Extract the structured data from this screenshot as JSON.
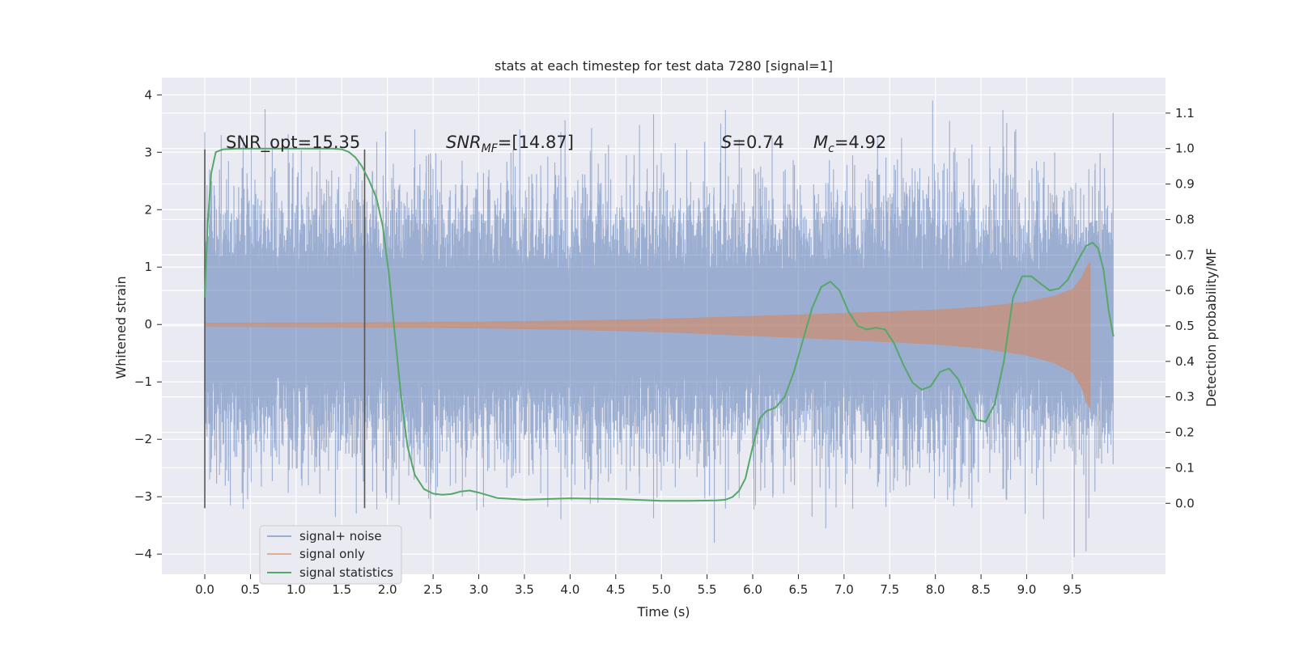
{
  "chart_data": {
    "type": "line",
    "title": "stats at each timestep for test data 7280 [signal=1]",
    "xlabel": "Time (s)",
    "ylabel_left": "Whitened strain",
    "ylabel_right": "Detection probability/MF",
    "xlim": [
      -0.47,
      10.52
    ],
    "ylim_left": [
      -4.35,
      4.3
    ],
    "ylim_right": [
      -0.2,
      1.2
    ],
    "x_ticks": [
      "0.0",
      "0.5",
      "1.0",
      "1.5",
      "2.0",
      "2.5",
      "3.0",
      "3.5",
      "4.0",
      "4.5",
      "5.0",
      "5.5",
      "6.0",
      "6.5",
      "7.0",
      "7.5",
      "8.0",
      "8.5",
      "9.0",
      "9.5"
    ],
    "y_ticks_left": [
      "4",
      "3",
      "2",
      "1",
      "0",
      "−1",
      "−2",
      "−3",
      "−4"
    ],
    "y_ticks_right": [
      "1.1",
      "1.0",
      "0.9",
      "0.8",
      "0.7",
      "0.6",
      "0.5",
      "0.4",
      "0.3",
      "0.2",
      "0.1",
      "0.0"
    ],
    "grid": true,
    "legend_position": "lower-left",
    "colors": {
      "background": "#eaeaf2",
      "grid": "#ffffff",
      "noise": "#4c72b0",
      "signal_only": "#dd8452",
      "statistics": "#55a868",
      "vlines": "#555555"
    },
    "annotations": [
      {
        "text": "SNR_opt=15.35"
      },
      {
        "text": "SNRMF=[14.87]",
        "math_base": "SNR",
        "math_sub": "MF",
        "rest": "=[14.87]"
      },
      {
        "text": "S=0.74",
        "math_base": "S",
        "rest": "=0.74"
      },
      {
        "text": "Mc=4.92",
        "math_base": "M",
        "math_sub": "c",
        "rest": "=4.92"
      }
    ],
    "vertical_lines_x": [
      0.0,
      1.75
    ],
    "vertical_lines_span": [
      -3.2,
      3.05
    ],
    "series": [
      {
        "name": "signal+ noise",
        "kind": "noise-envelope",
        "x_range": [
          0.0,
          9.95
        ],
        "typical_amplitude": 2.4,
        "peaks": [
          [
            0.0,
            3.35
          ],
          [
            0.18,
            3.3
          ],
          [
            0.28,
            -3.15
          ],
          [
            0.66,
            3.75
          ],
          [
            1.43,
            -3.35
          ],
          [
            2.3,
            3.4
          ],
          [
            3.45,
            3.4
          ],
          [
            5.58,
            -3.8
          ],
          [
            5.65,
            3.5
          ],
          [
            6.65,
            -3.35
          ],
          [
            6.8,
            -3.55
          ],
          [
            7.63,
            3.25
          ],
          [
            7.97,
            3.9
          ],
          [
            8.88,
            3.4
          ],
          [
            9.52,
            -4.05
          ],
          [
            9.65,
            -3.95
          ],
          [
            9.75,
            2.8
          ]
        ]
      },
      {
        "name": "signal only",
        "kind": "chirp-envelope",
        "x": [
          0.0,
          1.0,
          2.0,
          3.0,
          4.0,
          5.0,
          6.0,
          7.0,
          8.0,
          8.5,
          9.0,
          9.3,
          9.5,
          9.6,
          9.65,
          9.7
        ],
        "amplitude": [
          0.03,
          0.035,
          0.04,
          0.05,
          0.07,
          0.1,
          0.15,
          0.2,
          0.26,
          0.31,
          0.4,
          0.5,
          0.62,
          0.82,
          1.0,
          1.1
        ],
        "x_end": 9.7
      },
      {
        "name": "signal statistics",
        "kind": "line",
        "x": [
          0.0,
          0.03,
          0.07,
          0.12,
          0.2,
          0.35,
          0.6,
          1.0,
          1.2,
          1.4,
          1.5,
          1.58,
          1.65,
          1.72,
          1.8,
          1.88,
          1.95,
          2.02,
          2.08,
          2.15,
          2.22,
          2.3,
          2.4,
          2.5,
          2.6,
          2.7,
          2.8,
          2.9,
          3.0,
          3.2,
          3.5,
          4.0,
          4.5,
          5.0,
          5.3,
          5.6,
          5.7,
          5.78,
          5.85,
          5.92,
          6.0,
          6.08,
          6.15,
          6.25,
          6.35,
          6.45,
          6.55,
          6.65,
          6.75,
          6.85,
          6.95,
          7.05,
          7.15,
          7.25,
          7.35,
          7.45,
          7.55,
          7.65,
          7.75,
          7.85,
          7.95,
          8.05,
          8.15,
          8.25,
          8.35,
          8.45,
          8.55,
          8.65,
          8.75,
          8.85,
          8.95,
          9.05,
          9.15,
          9.25,
          9.35,
          9.45,
          9.55,
          9.65,
          9.72,
          9.78,
          9.84,
          9.9,
          9.95
        ],
        "y": [
          0.58,
          0.78,
          0.93,
          0.99,
          0.998,
          1.0,
          1.0,
          1.0,
          1.0,
          1.0,
          0.998,
          0.99,
          0.975,
          0.95,
          0.91,
          0.86,
          0.78,
          0.64,
          0.48,
          0.3,
          0.16,
          0.08,
          0.04,
          0.027,
          0.024,
          0.026,
          0.033,
          0.036,
          0.03,
          0.015,
          0.01,
          0.014,
          0.012,
          0.007,
          0.007,
          0.008,
          0.01,
          0.018,
          0.035,
          0.07,
          0.16,
          0.24,
          0.26,
          0.27,
          0.3,
          0.37,
          0.46,
          0.55,
          0.61,
          0.625,
          0.6,
          0.54,
          0.5,
          0.49,
          0.495,
          0.49,
          0.45,
          0.39,
          0.34,
          0.32,
          0.33,
          0.37,
          0.38,
          0.35,
          0.29,
          0.235,
          0.23,
          0.28,
          0.4,
          0.58,
          0.64,
          0.64,
          0.62,
          0.6,
          0.605,
          0.63,
          0.68,
          0.725,
          0.735,
          0.72,
          0.66,
          0.54,
          0.47
        ]
      }
    ]
  }
}
